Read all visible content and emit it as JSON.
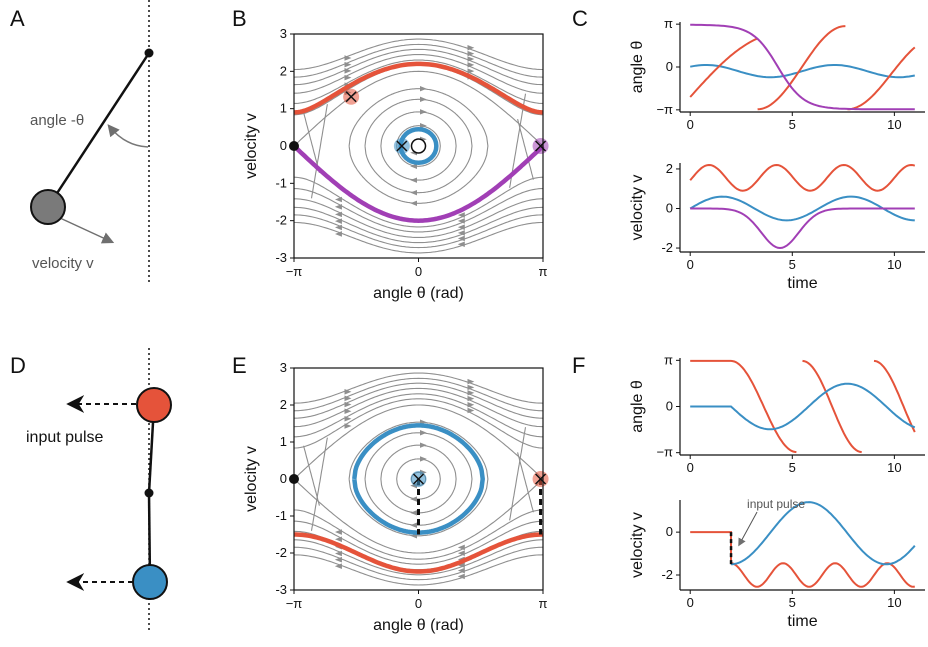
{
  "colors": {
    "red": "#e5533a",
    "blue": "#3a8fc4",
    "purple": "#a13fb5",
    "grey": "#8c8c8c",
    "stream": "#8f8f8f",
    "black": "#111111"
  },
  "panel_labels": {
    "A": "A",
    "B": "B",
    "C": "C",
    "D": "D",
    "E": "E",
    "F": "F"
  },
  "pendulum_a": {
    "angle_label": "angle -θ",
    "velocity_label": "velocity v",
    "bob_color": "#7a7a7a"
  },
  "pendulum_d": {
    "input_label": "input pulse",
    "top_bob_color": "#e5533a",
    "bottom_bob_color": "#3a8fc4"
  },
  "icons": [
    "pivot-dot-icon",
    "arrow-icon",
    "bob-icon",
    "cross-marker-icon",
    "open-circle-icon"
  ],
  "chart_data": [
    {
      "id": "B",
      "type": "line",
      "xlabel": "angle θ (rad)",
      "ylabel": "velocity v",
      "xlim": [
        -3.1416,
        3.1416
      ],
      "ylim": [
        -3,
        3
      ],
      "xticklabels": [
        "−π",
        "0",
        "π"
      ],
      "yticks": [
        -3,
        -2,
        -1,
        0,
        1,
        2,
        3
      ],
      "series": [
        {
          "color": "red",
          "kind": "rotation",
          "energy": 1.0
        },
        {
          "color": "purple",
          "kind": "separatrix-lower",
          "energy": 1.0
        },
        {
          "color": "blue",
          "kind": "small-orbit",
          "amplitude": 0.45
        }
      ],
      "markers": [
        {
          "kind": "cross",
          "color": "red",
          "x": -1.7,
          "y": 1.3
        },
        {
          "kind": "cross",
          "color": "blue",
          "x": -0.45,
          "y": 0
        },
        {
          "kind": "cross",
          "color": "purple",
          "x": 3.1,
          "y": 0
        },
        {
          "kind": "dot",
          "color": "black",
          "x": -3.1416,
          "y": 0
        },
        {
          "kind": "open-circle",
          "x": 0,
          "y": 0
        }
      ]
    },
    {
      "id": "C-angle",
      "type": "line",
      "ylabel": "angle θ",
      "xlim": [
        -0.5,
        11.5
      ],
      "ylim": [
        -3.3,
        3.3
      ],
      "xticks": [
        0,
        5,
        10
      ],
      "yticklabels": [
        "π",
        "0",
        "−π"
      ],
      "series": [
        {
          "color": "red"
        },
        {
          "color": "blue"
        },
        {
          "color": "purple"
        }
      ]
    },
    {
      "id": "C-velocity",
      "type": "line",
      "ylabel": "velocity v",
      "xlabel": "time",
      "xlim": [
        -0.5,
        11.5
      ],
      "ylim": [
        -2.2,
        2.3
      ],
      "xticks": [
        0,
        5,
        10
      ],
      "yticks": [
        -2,
        0,
        2
      ],
      "series": [
        {
          "color": "red"
        },
        {
          "color": "blue"
        },
        {
          "color": "purple"
        }
      ]
    },
    {
      "id": "E",
      "type": "line",
      "xlabel": "angle θ (rad)",
      "ylabel": "velocity v",
      "xlim": [
        -3.1416,
        3.1416
      ],
      "ylim": [
        -3,
        3
      ],
      "xticklabels": [
        "−π",
        "0",
        "π"
      ],
      "yticks": [
        -3,
        -2,
        -1,
        0,
        1,
        2,
        3
      ],
      "series": [
        {
          "color": "blue",
          "kind": "large-orbit",
          "amplitude": 1.5
        },
        {
          "color": "red",
          "kind": "rotation-lower",
          "energy": 1.25
        }
      ],
      "markers": [
        {
          "kind": "cross",
          "color": "blue",
          "x": 0,
          "y": 0
        },
        {
          "kind": "cross",
          "color": "red",
          "x": 3.1,
          "y": 0
        },
        {
          "kind": "dot",
          "color": "black",
          "x": -3.1416,
          "y": 0
        }
      ]
    },
    {
      "id": "F-angle",
      "type": "line",
      "ylabel": "angle θ",
      "xlim": [
        -0.5,
        11.5
      ],
      "ylim": [
        -3.3,
        3.3
      ],
      "xticks": [
        0,
        5,
        10
      ],
      "yticklabels": [
        "π",
        "0",
        "−π"
      ],
      "series": [
        {
          "color": "red"
        },
        {
          "color": "blue"
        }
      ]
    },
    {
      "id": "F-velocity",
      "type": "line",
      "ylabel": "velocity v",
      "xlabel": "time",
      "xlim": [
        -0.5,
        11.5
      ],
      "ylim": [
        -2.7,
        1.5
      ],
      "xticks": [
        0,
        5,
        10
      ],
      "yticks": [
        -2,
        0
      ],
      "annotation": "input pulse",
      "series": [
        {
          "color": "red"
        },
        {
          "color": "blue"
        }
      ]
    }
  ]
}
